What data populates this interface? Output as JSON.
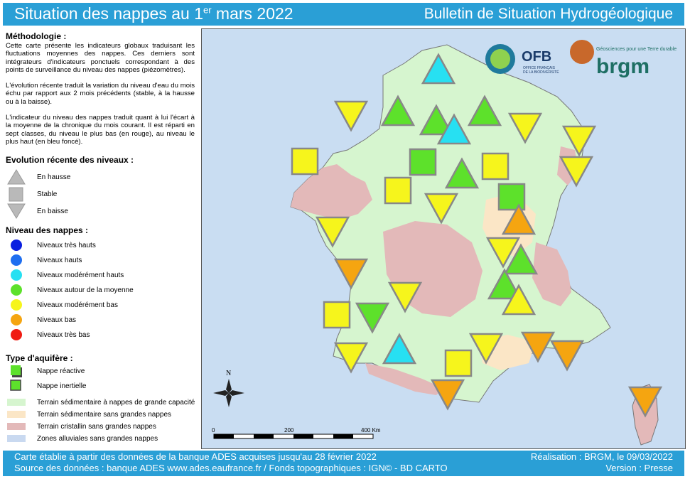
{
  "header": {
    "title_pre": "Situation des nappes au 1",
    "title_sup": "er",
    "title_post": " mars 2022",
    "subtitle": "Bulletin de Situation Hydrogéologique"
  },
  "methodology": {
    "title": "Méthodologie :",
    "p1": "Cette carte présente les indicateurs globaux traduisant les fluctuations moyennes des nappes. Ces derniers sont intégrateurs d'indicateurs ponctuels correspondant à des points de surveillance du niveau des nappes (piézomètres).",
    "p2": "L'évolution récente traduit la variation du niveau d'eau du mois échu par rapport aux 2 mois précédents (stable, à la hausse ou à la baisse).",
    "p3": "L'indicateur du niveau des nappes traduit quant à lui l'écart à la moyenne de la chronique du mois courant. Il est réparti en sept classes, du niveau le plus bas (en rouge), au niveau le plus haut (en bleu foncé)."
  },
  "evolution": {
    "title": "Evolution récente des niveaux :",
    "items": [
      {
        "shape": "up",
        "label": "En hausse"
      },
      {
        "shape": "square",
        "label": "Stable"
      },
      {
        "shape": "down",
        "label": "En baisse"
      }
    ]
  },
  "levels": {
    "title": "Niveau des nappes :",
    "items": [
      {
        "label": "Niveaux très hauts",
        "color": "#0a1fe0"
      },
      {
        "label": "Niveaux hauts",
        "color": "#1f6ef0"
      },
      {
        "label": "Niveaux modérément hauts",
        "color": "#27e0f2"
      },
      {
        "label": "Niveaux autour de la moyenne",
        "color": "#5de12b"
      },
      {
        "label": "Niveaux modérément bas",
        "color": "#f6f51c"
      },
      {
        "label": "Niveaux bas",
        "color": "#f5a510"
      },
      {
        "label": "Niveaux très bas",
        "color": "#f01b12"
      }
    ]
  },
  "aquifer": {
    "title": "Type d'aquifère :",
    "items": [
      {
        "label": "Nappe réactive"
      },
      {
        "label": "Nappe inertielle"
      }
    ],
    "zones": [
      {
        "label": "Terrain sédimentaire à nappes de grande capacité",
        "color": "#d6f5cf"
      },
      {
        "label": "Terrain sédimentaire sans grandes nappes",
        "color": "#fbe6c6"
      },
      {
        "label": "Terrain cristallin sans grandes nappes",
        "color": "#e3b9b9"
      },
      {
        "label": "Zones alluviales sans grandes nappes",
        "color": "#c9d9f0"
      }
    ]
  },
  "map": {
    "logos": {
      "ofb": "OFB",
      "ofb_sub1": "OFFICE FRANÇAIS",
      "ofb_sub2": "DE LA BIODIVERSITÉ",
      "brgm": "brgm",
      "brgm_tag": "Géosciences pour une Terre durable"
    },
    "north": "N",
    "scale": {
      "s0": "0",
      "s1": "200",
      "s2": "400 Km"
    },
    "symbols": [
      {
        "shape": "up",
        "level": "mod_high"
      },
      {
        "shape": "up",
        "level": "avg"
      },
      {
        "shape": "up",
        "level": "avg"
      },
      {
        "shape": "up",
        "level": "avg"
      },
      {
        "shape": "up",
        "level": "mod_high"
      },
      {
        "shape": "down",
        "level": "mod_low"
      },
      {
        "shape": "down",
        "level": "mod_low"
      },
      {
        "shape": "down",
        "level": "mod_low"
      },
      {
        "shape": "down",
        "level": "mod_low"
      },
      {
        "shape": "square",
        "level": "mod_low"
      },
      {
        "shape": "square",
        "level": "avg"
      },
      {
        "shape": "up",
        "level": "avg"
      },
      {
        "shape": "square",
        "level": "mod_low"
      },
      {
        "shape": "square",
        "level": "mod_low"
      },
      {
        "shape": "down",
        "level": "mod_low"
      },
      {
        "shape": "square",
        "level": "avg"
      },
      {
        "shape": "down",
        "level": "mod_low"
      },
      {
        "shape": "up",
        "level": "low"
      },
      {
        "shape": "down",
        "level": "mod_low"
      },
      {
        "shape": "up",
        "level": "avg"
      },
      {
        "shape": "down",
        "level": "low"
      },
      {
        "shape": "up",
        "level": "avg"
      },
      {
        "shape": "down",
        "level": "mod_low"
      },
      {
        "shape": "up",
        "level": "mod_low"
      },
      {
        "shape": "square",
        "level": "mod_low"
      },
      {
        "shape": "down",
        "level": "avg"
      },
      {
        "shape": "down",
        "level": "mod_low"
      },
      {
        "shape": "up",
        "level": "mod_high"
      },
      {
        "shape": "square",
        "level": "mod_low"
      },
      {
        "shape": "down",
        "level": "mod_low"
      },
      {
        "shape": "down",
        "level": "low"
      },
      {
        "shape": "down",
        "level": "low"
      },
      {
        "shape": "down",
        "level": "low"
      },
      {
        "shape": "down",
        "level": "low"
      }
    ]
  },
  "footer": {
    "left1": "Carte établie à partir des données de la banque ADES acquises jusqu'au 28 février 2022",
    "left2": "Source des données : banque ADES www.ades.eaufrance.fr / Fonds topographiques : IGN© - BD CARTO",
    "right1": "Réalisation : BRGM, le 09/03/2022",
    "right2": "Version : Presse"
  }
}
